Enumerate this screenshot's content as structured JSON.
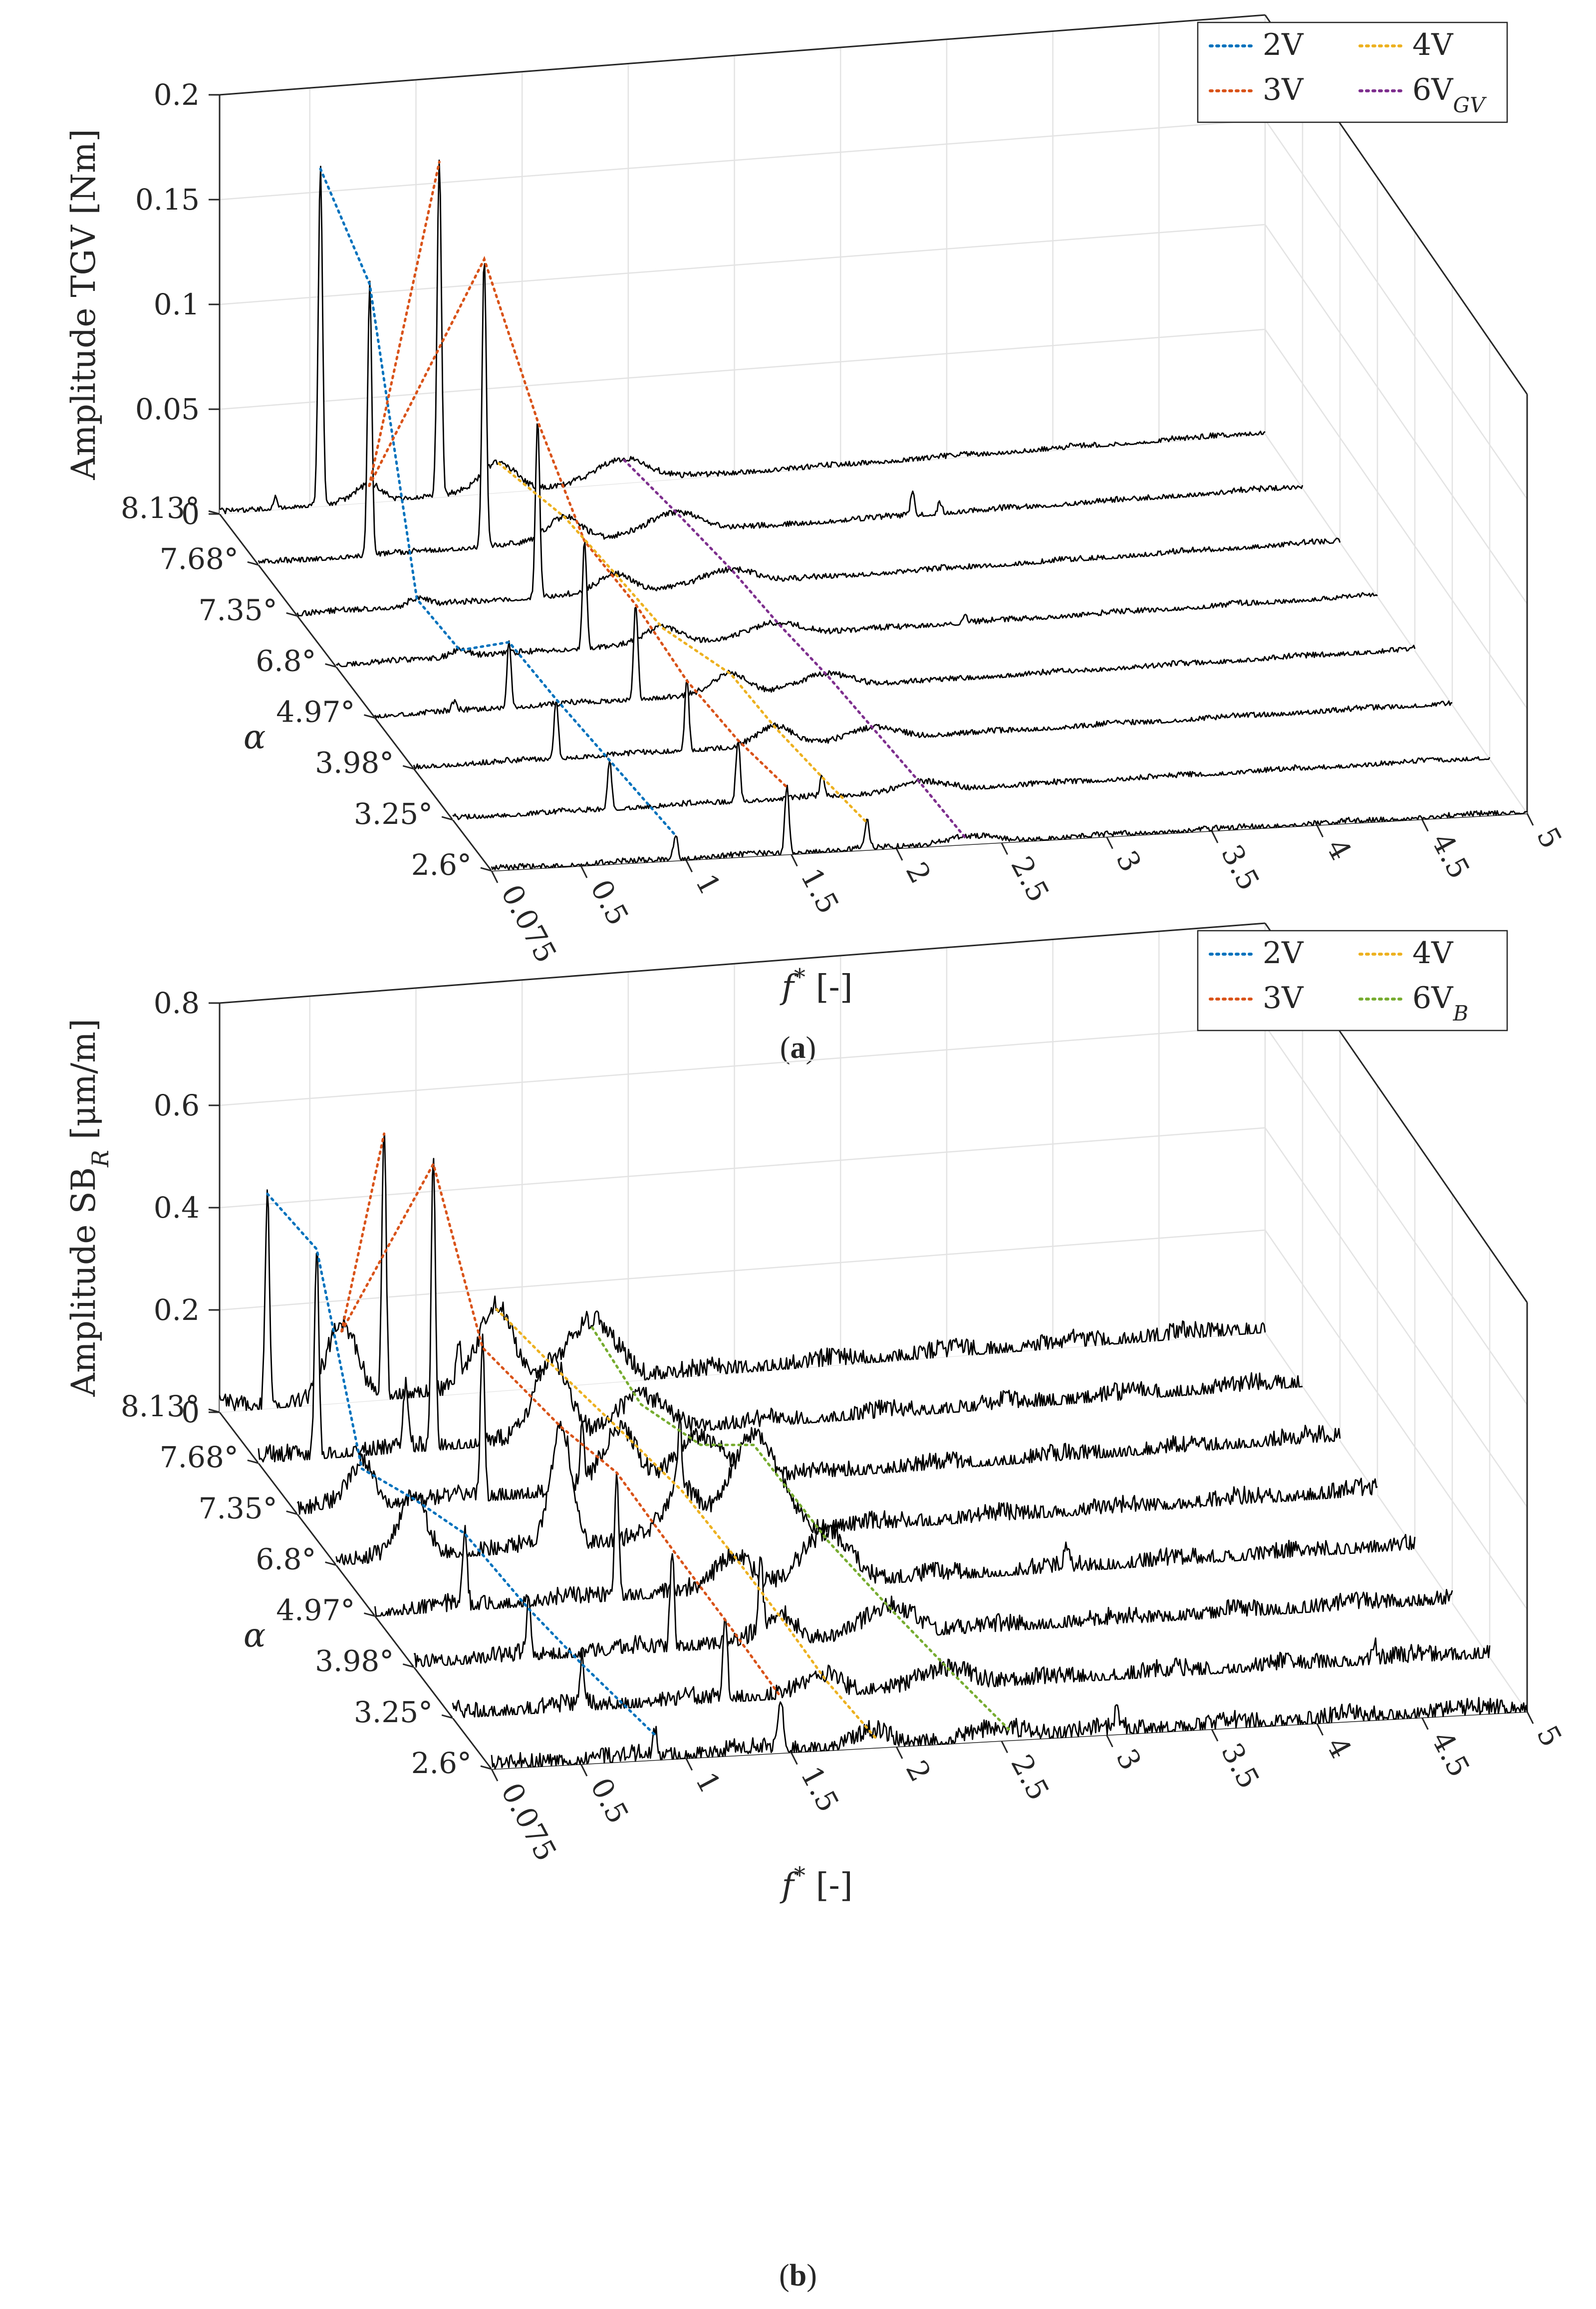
{
  "chart_data": [
    {
      "type": "waterfall",
      "panel_label": "a",
      "zlabel": "Amplitude TGV [Nm]",
      "zticks": [
        "0",
        "0.05",
        "0.1",
        "0.15",
        "0.2"
      ],
      "zlim": [
        0,
        0.2
      ],
      "xlabel_main": "f",
      "xlabel_sup": "*",
      "xlabel_rest": " [-]",
      "xlim": [
        0.075,
        5
      ],
      "xticks": [
        0.075,
        0.5,
        1,
        1.5,
        2,
        2.5,
        3,
        3.5,
        4,
        4.5,
        5
      ],
      "xtick_labels": [
        "0.075",
        "0.5",
        "1",
        "1.5",
        "2",
        "2.5",
        "3",
        "3.5",
        "4",
        "4.5",
        "5"
      ],
      "ylabel": "α",
      "categories": [
        "2.6°",
        "3.25°",
        "3.98°",
        "4.97°",
        "6.8°",
        "7.35°",
        "7.68°",
        "8.13°"
      ],
      "legend": [
        {
          "main": "2V",
          "sub": "",
          "color": "#0072BD"
        },
        {
          "main": "4V",
          "sub": "",
          "color": "#EDB120"
        },
        {
          "main": "3V",
          "sub": "",
          "color": "#D95319"
        },
        {
          "main": "6V",
          "sub": "GV",
          "color": "#7E2F8E"
        }
      ],
      "noise": 0.0014,
      "floor": 0.0008,
      "series": [
        {
          "name": "2.6°",
          "peaks": [
            [
              0.95,
              0.012,
              0.01
            ],
            [
              1.48,
              0.032,
              0.01
            ],
            [
              1.86,
              0.013,
              0.01
            ],
            [
              2.33,
              0.003,
              0.12
            ]
          ]
        },
        {
          "name": "3.25°",
          "peaks": [
            [
              0.82,
              0.024,
              0.01
            ],
            [
              1.43,
              0.03,
              0.01
            ],
            [
              1.83,
              0.01,
              0.01
            ],
            [
              2.3,
              0.004,
              0.12
            ]
          ]
        },
        {
          "name": "3.98°",
          "peaks": [
            [
              0.75,
              0.029,
              0.01
            ],
            [
              1.37,
              0.034,
              0.01
            ],
            [
              1.79,
              0.009,
              0.08
            ],
            [
              2.26,
              0.005,
              0.12
            ]
          ]
        },
        {
          "name": "4.97°",
          "peaks": [
            [
              0.71,
              0.032,
              0.01
            ],
            [
              1.31,
              0.046,
              0.01
            ],
            [
              1.76,
              0.01,
              0.08
            ],
            [
              2.22,
              0.006,
              0.12
            ],
            [
              0.45,
              0.004,
              0.01
            ]
          ]
        },
        {
          "name": "6.8°",
          "peaks": [
            [
              0.66,
              0.004,
              0.05
            ],
            [
              1.25,
              0.052,
              0.01
            ],
            [
              1.62,
              0.008,
              0.08
            ],
            [
              2.17,
              0.006,
              0.12
            ],
            [
              3.05,
              0.004,
              0.01
            ]
          ]
        },
        {
          "name": "7.35°",
          "peaks": [
            [
              0.64,
              0.004,
              0.05
            ],
            [
              1.21,
              0.085,
              0.01
            ],
            [
              1.58,
              0.009,
              0.08
            ],
            [
              2.13,
              0.007,
              0.12
            ]
          ]
        },
        {
          "name": "7.68°",
          "peaks": [
            [
              0.6,
              0.13,
              0.01
            ],
            [
              1.14,
              0.138,
              0.01
            ],
            [
              1.52,
              0.012,
              0.08
            ],
            [
              2.05,
              0.01,
              0.12
            ],
            [
              3.16,
              0.011,
              0.01
            ],
            [
              3.29,
              0.006,
              0.01
            ]
          ]
        },
        {
          "name": "8.13°",
          "peaks": [
            [
              0.55,
              0.161,
              0.01
            ],
            [
              1.11,
              0.16,
              0.01
            ],
            [
              0.78,
              0.008,
              0.06
            ],
            [
              1.39,
              0.014,
              0.08
            ],
            [
              1.98,
              0.011,
              0.12
            ],
            [
              0.34,
              0.006,
              0.01
            ]
          ]
        }
      ],
      "tracks": [
        {
          "name": "2V",
          "color": "#0072BD",
          "points": [
            [
              0.55,
              0.161
            ],
            [
              0.6,
              0.13
            ],
            [
              0.64,
              0.004
            ],
            [
              0.66,
              0.004
            ],
            [
              0.71,
              0.032
            ],
            [
              0.75,
              0.029
            ],
            [
              0.82,
              0.024
            ],
            [
              0.95,
              0.012
            ]
          ]
        },
        {
          "name": "3V",
          "color": "#D95319",
          "points": [
            [
              0.78,
              0.008
            ],
            [
              1.14,
              0.138
            ],
            [
              1.21,
              0.085
            ],
            [
              1.25,
              0.052
            ],
            [
              1.31,
              0.046
            ],
            [
              1.37,
              0.034
            ],
            [
              1.43,
              0.03
            ],
            [
              1.48,
              0.032
            ]
          ]
        },
        {
          "name": "3V",
          "color": "#D95319",
          "points": [
            [
              0.78,
              0.008
            ],
            [
              1.11,
              0.16
            ]
          ]
        },
        {
          "name": "4V",
          "color": "#EDB120",
          "points": [
            [
              1.39,
              0.014
            ],
            [
              1.52,
              0.012
            ],
            [
              1.58,
              0.009
            ],
            [
              1.62,
              0.008
            ],
            [
              1.76,
              0.01
            ],
            [
              1.79,
              0.009
            ],
            [
              1.83,
              0.01
            ],
            [
              1.86,
              0.013
            ]
          ]
        },
        {
          "name": "6V_GV",
          "color": "#7E2F8E",
          "points": [
            [
              1.98,
              0.011
            ],
            [
              2.05,
              0.01
            ],
            [
              2.13,
              0.007
            ],
            [
              2.17,
              0.006
            ],
            [
              2.22,
              0.006
            ],
            [
              2.26,
              0.005
            ],
            [
              2.3,
              0.004
            ],
            [
              2.33,
              0.003
            ]
          ]
        }
      ]
    },
    {
      "type": "waterfall",
      "panel_label": "b",
      "zlabel_main": "Amplitude SB",
      "zlabel_sub": "R",
      "zlabel_rest": " [μm/m]",
      "zticks": [
        "0",
        "0.2",
        "0.4",
        "0.6",
        "0.8"
      ],
      "zlim": [
        0,
        0.8
      ],
      "xlabel_main": "f",
      "xlabel_sup": "*",
      "xlabel_rest": " [-]",
      "xlim": [
        0.075,
        5
      ],
      "xticks": [
        0.075,
        0.5,
        1,
        1.5,
        2,
        2.5,
        3,
        3.5,
        4,
        4.5,
        5
      ],
      "xtick_labels": [
        "0.075",
        "0.5",
        "1",
        "1.5",
        "2",
        "2.5",
        "3",
        "3.5",
        "4",
        "4.5",
        "5"
      ],
      "ylabel": "α",
      "categories": [
        "2.6°",
        "3.25°",
        "3.98°",
        "4.97°",
        "6.8°",
        "7.35°",
        "7.68°",
        "8.13°"
      ],
      "legend": [
        {
          "main": "2V",
          "sub": "",
          "color": "#0072BD"
        },
        {
          "main": "4V",
          "sub": "",
          "color": "#EDB120"
        },
        {
          "main": "3V",
          "sub": "",
          "color": "#D95319"
        },
        {
          "main": "6V",
          "sub": "B",
          "color": "#77AC30"
        }
      ],
      "noise": 0.018,
      "floor": 0.01,
      "series": [
        {
          "name": "2.6°",
          "peaks": [
            [
              0.85,
              0.05,
              0.01
            ],
            [
              1.45,
              0.11,
              0.01
            ],
            [
              1.9,
              0.02,
              0.08
            ],
            [
              2.55,
              0.015,
              0.12
            ],
            [
              3.05,
              0.04,
              0.01
            ]
          ]
        },
        {
          "name": "3.25°",
          "peaks": [
            [
              0.69,
              0.09,
              0.01
            ],
            [
              1.37,
              0.16,
              0.01
            ],
            [
              1.85,
              0.03,
              0.08
            ],
            [
              2.45,
              0.03,
              0.12
            ],
            [
              4.45,
              0.04,
              0.01
            ]
          ]
        },
        {
          "name": "3.98°",
          "peaks": [
            [
              0.62,
              0.1,
              0.01
            ],
            [
              1.3,
              0.2,
              0.01
            ],
            [
              1.82,
              0.05,
              0.08
            ],
            [
              2.35,
              0.05,
              0.12
            ],
            [
              1.72,
              0.13,
              0.01
            ]
          ]
        },
        {
          "name": "4.97°",
          "peaks": [
            [
              0.5,
              0.15,
              0.01
            ],
            [
              1.22,
              0.25,
              0.01
            ],
            [
              1.78,
              0.07,
              0.08
            ],
            [
              2.22,
              0.09,
              0.12
            ],
            [
              3.35,
              0.04,
              0.01
            ]
          ]
        },
        {
          "name": "6.8°",
          "peaks": [
            [
              0.44,
              0.12,
              0.06
            ],
            [
              1.14,
              0.24,
              0.05
            ],
            [
              1.71,
              0.1,
              0.08
            ],
            [
              2.05,
              0.18,
              0.12
            ],
            [
              1.7,
              0.13,
              0.01
            ]
          ]
        },
        {
          "name": "7.35°",
          "peaks": [
            [
              0.38,
              0.08,
              0.06
            ],
            [
              0.95,
              0.3,
              0.01
            ],
            [
              1.6,
              0.12,
              0.08
            ],
            [
              1.98,
              0.08,
              0.12
            ],
            [
              1.42,
              0.1,
              0.01
            ]
          ]
        },
        {
          "name": "7.68°",
          "peaks": [
            [
              0.35,
              0.41,
              0.01
            ],
            [
              0.9,
              0.56,
              0.01
            ],
            [
              1.46,
              0.15,
              0.08
            ],
            [
              1.88,
              0.06,
              0.12
            ],
            [
              0.77,
              0.12,
              0.01
            ]
          ]
        },
        {
          "name": "8.13°",
          "peaks": [
            [
              0.3,
              0.42,
              0.01
            ],
            [
              0.85,
              0.52,
              0.01
            ],
            [
              0.65,
              0.14,
              0.07
            ],
            [
              1.38,
              0.16,
              0.08
            ],
            [
              1.83,
              0.11,
              0.12
            ],
            [
              1.2,
              0.08,
              0.01
            ]
          ]
        }
      ],
      "tracks": [
        {
          "name": "2V",
          "color": "#0072BD",
          "points": [
            [
              0.3,
              0.42
            ],
            [
              0.35,
              0.41
            ],
            [
              0.38,
              0.08
            ],
            [
              0.44,
              0.12
            ],
            [
              0.5,
              0.15
            ],
            [
              0.62,
              0.1
            ],
            [
              0.69,
              0.09
            ],
            [
              0.85,
              0.05
            ]
          ]
        },
        {
          "name": "3V",
          "color": "#D95319",
          "points": [
            [
              0.65,
              0.14
            ],
            [
              0.9,
              0.56
            ],
            [
              0.95,
              0.3
            ],
            [
              1.14,
              0.24
            ],
            [
              1.22,
              0.25
            ],
            [
              1.3,
              0.2
            ],
            [
              1.37,
              0.16
            ],
            [
              1.45,
              0.11
            ]
          ]
        },
        {
          "name": "3V",
          "color": "#D95319",
          "points": [
            [
              0.65,
              0.14
            ],
            [
              0.85,
              0.52
            ]
          ]
        },
        {
          "name": "4V",
          "color": "#EDB120",
          "points": [
            [
              1.38,
              0.16
            ],
            [
              1.46,
              0.15
            ],
            [
              1.6,
              0.12
            ],
            [
              1.71,
              0.1
            ],
            [
              1.78,
              0.07
            ],
            [
              1.82,
              0.05
            ],
            [
              1.85,
              0.03
            ],
            [
              1.9,
              0.02
            ]
          ]
        },
        {
          "name": "6V_B",
          "color": "#77AC30",
          "points": [
            [
              1.83,
              0.11
            ],
            [
              1.88,
              0.06
            ],
            [
              1.98,
              0.08
            ],
            [
              2.05,
              0.18
            ],
            [
              2.22,
              0.09
            ],
            [
              2.35,
              0.05
            ],
            [
              2.45,
              0.03
            ],
            [
              2.55,
              0.015
            ]
          ]
        }
      ]
    }
  ]
}
